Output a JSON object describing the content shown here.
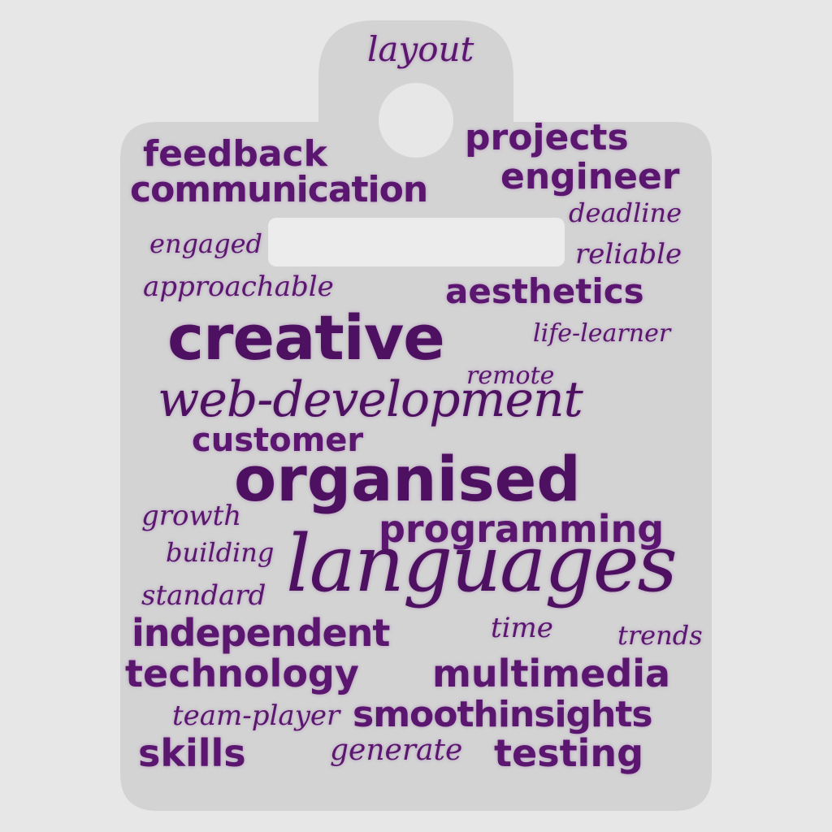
{
  "colors": {
    "background": "#e7e7e7",
    "badge": "#d3d3d3",
    "slot": "#ececec",
    "word": "#5b1670"
  },
  "words": {
    "layout": "layout",
    "feedback": "feedback",
    "projects": "projects",
    "communication": "communication",
    "engineer": "engineer",
    "deadline": "deadline",
    "engaged": "engaged",
    "reliable": "reliable",
    "approachable": "approachable",
    "aesthetics": "aesthetics",
    "creative": "creative",
    "life_learner": "life-learner",
    "remote": "remote",
    "web_development": "web-development",
    "customer": "customer",
    "organised": "organised",
    "growth": "growth",
    "programming": "programming",
    "building": "building",
    "languages": "languages",
    "standard": "standard",
    "independent": "independent",
    "time": "time",
    "trends": "trends",
    "technology": "technology",
    "multimedia": "multimedia",
    "team_player": "team-player",
    "smoothinsights": "smoothinsights",
    "skills": "skills",
    "generate": "generate",
    "testing": "testing"
  }
}
